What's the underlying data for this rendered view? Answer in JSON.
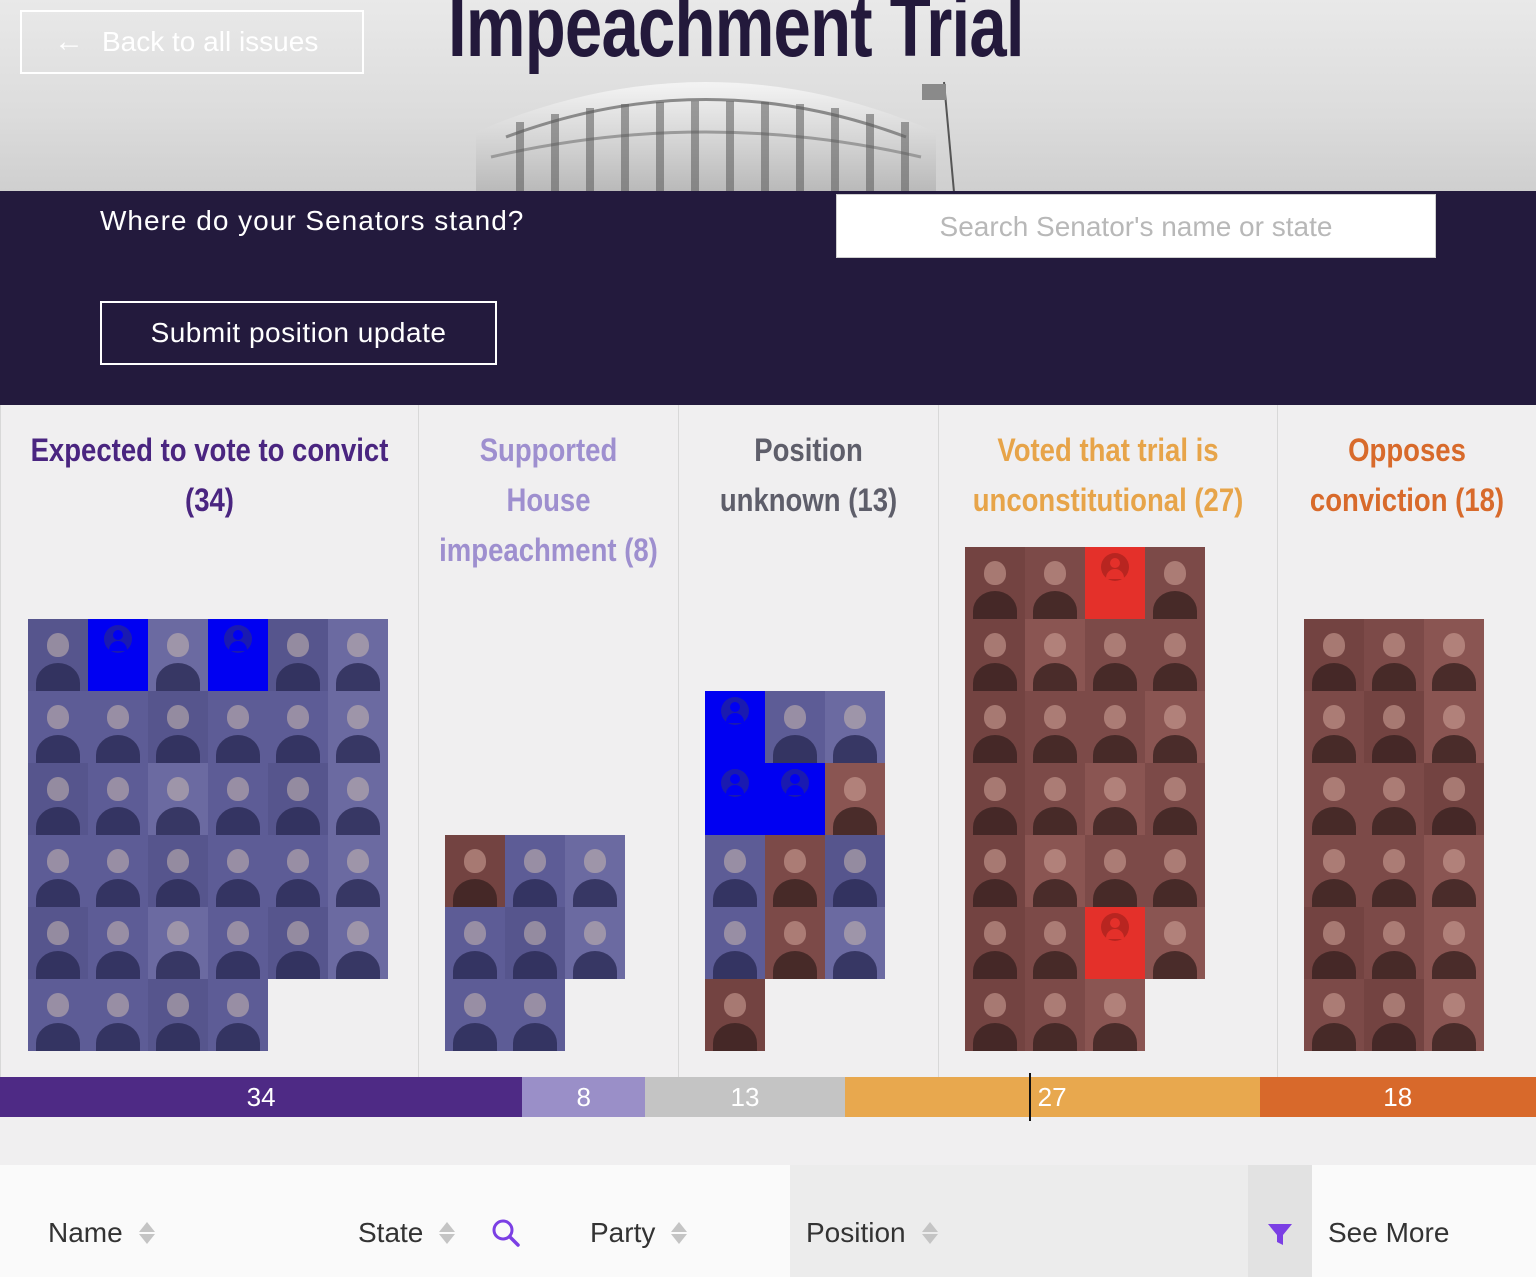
{
  "hero": {
    "title": "Impeachment Trial",
    "back_label": "Back to all issues",
    "back_icon": "arrow-left-icon"
  },
  "band": {
    "question": "Where do your Senators stand?",
    "search_placeholder": "Search Senator's name or state",
    "submit_label": "Submit position update"
  },
  "columns": [
    {
      "title": "Expected to vote to convict (34)",
      "color": "#4a2580",
      "count": 34
    },
    {
      "title": "Supported House impeachment (8)",
      "color": "#9e8fcf",
      "count": 8
    },
    {
      "title": "Position unknown (13)",
      "color": "#5e5e6a",
      "count": 13
    },
    {
      "title": "Voted that trial is unconstitutional (27)",
      "color": "#e7a449",
      "count": 27
    },
    {
      "title": "Opposes conviction (18)",
      "color": "#d86a2b",
      "count": 18
    }
  ],
  "summary_bar": [
    {
      "label": "34",
      "value": 34,
      "color": "#4e2a85"
    },
    {
      "label": "8",
      "value": 8,
      "color": "#9a8fc8"
    },
    {
      "label": "13",
      "value": 13,
      "color": "#c4c4c4"
    },
    {
      "label": "27",
      "value": 27,
      "color": "#e8a84e"
    },
    {
      "label": "18",
      "value": 18,
      "color": "#d8692b"
    }
  ],
  "table": {
    "name_header": "Name",
    "state_header": "State",
    "party_header": "Party",
    "position_header": "Position",
    "see_more": "See More",
    "search_icon": "search-icon",
    "filter_icon": "filter-icon",
    "accent": "#7b3fe4"
  }
}
